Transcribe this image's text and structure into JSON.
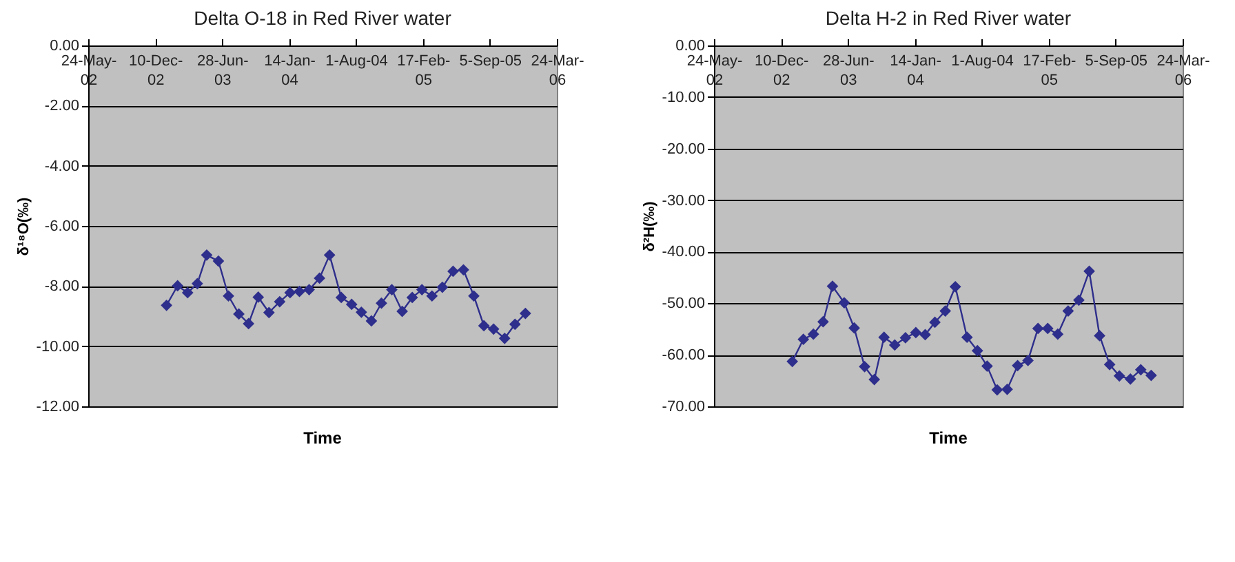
{
  "chart_data": [
    {
      "type": "line",
      "title": "Delta O-18 in Red River water",
      "xlabel": "Time",
      "ylabel": "δ¹⁸O(‰)",
      "marker": "diamond",
      "grid": "y",
      "x": [
        "2003-01-13",
        "2003-02-15",
        "2003-03-17",
        "2003-04-15",
        "2003-05-13",
        "2003-06-17",
        "2003-07-17",
        "2003-08-17",
        "2003-09-15",
        "2003-10-14",
        "2003-11-15",
        "2003-12-17",
        "2004-01-17",
        "2004-02-14",
        "2004-03-14",
        "2004-04-14",
        "2004-05-14",
        "2004-06-18",
        "2004-07-19",
        "2004-08-17",
        "2004-09-16",
        "2004-10-16",
        "2004-11-16",
        "2004-12-17",
        "2005-01-16",
        "2005-02-14",
        "2005-03-16",
        "2005-04-16",
        "2005-05-18",
        "2005-06-18",
        "2005-07-19",
        "2005-08-18",
        "2005-09-16",
        "2005-10-19",
        "2005-11-19",
        "2005-12-20"
      ],
      "series": [
        {
          "color": "#2e2e8c",
          "line_style": "solid",
          "values": [
            -8.64,
            -7.99,
            -8.22,
            -7.92,
            -6.97,
            -7.17,
            -8.33,
            -8.93,
            -9.25,
            -8.37,
            -8.88,
            -8.52,
            -8.22,
            -8.18,
            -8.12,
            -7.74,
            -6.97,
            -8.38,
            -8.61,
            -8.87,
            -9.16,
            -8.57,
            -8.12,
            -8.84,
            -8.38,
            -8.12,
            -8.33,
            -8.04,
            -7.51,
            -7.46,
            -8.33,
            -9.32,
            -9.43,
            -9.74,
            -9.27,
            -8.91
          ]
        }
      ],
      "xlim": [
        "2002-05-24",
        "2006-03-24"
      ],
      "xticks": [
        {
          "value": "2002-05-24",
          "label": "24-May-02"
        },
        {
          "value": "2002-12-10",
          "label": "10-Dec-02"
        },
        {
          "value": "2003-06-28",
          "label": "28-Jun-03"
        },
        {
          "value": "2004-01-14",
          "label": "14-Jan-04"
        },
        {
          "value": "2004-08-01",
          "label": "1-Aug-04"
        },
        {
          "value": "2005-02-17",
          "label": "17-Feb-05"
        },
        {
          "value": "2005-09-05",
          "label": "5-Sep-05"
        },
        {
          "value": "2006-03-24",
          "label": "24-Mar-06"
        }
      ],
      "ylim": [
        -12,
        0
      ],
      "yticks": [
        {
          "value": 0,
          "label": "0.00"
        },
        {
          "value": -2,
          "label": "-2.00"
        },
        {
          "value": -4,
          "label": "-4.00"
        },
        {
          "value": -6,
          "label": "-6.00"
        },
        {
          "value": -8,
          "label": "-8.00"
        },
        {
          "value": -10,
          "label": "-10.00"
        },
        {
          "value": -12,
          "label": "-12.00"
        }
      ]
    },
    {
      "type": "line",
      "title": "Delta H-2 in Red River water",
      "xlabel": "Time",
      "ylabel": "δ²H(‰)",
      "marker": "diamond",
      "grid": "y",
      "x": [
        "2003-01-13",
        "2003-02-15",
        "2003-03-17",
        "2003-04-15",
        "2003-05-13",
        "2003-06-17",
        "2003-07-17",
        "2003-08-17",
        "2003-09-15",
        "2003-10-14",
        "2003-11-15",
        "2003-12-17",
        "2004-01-17",
        "2004-02-14",
        "2004-03-14",
        "2004-04-14",
        "2004-05-14",
        "2004-06-18",
        "2004-07-19",
        "2004-08-17",
        "2004-09-16",
        "2004-10-16",
        "2004-11-16",
        "2004-12-17",
        "2005-01-16",
        "2005-02-14",
        "2005-03-16",
        "2005-04-16",
        "2005-05-18",
        "2005-06-18",
        "2005-07-19",
        "2005-08-18",
        "2005-09-16",
        "2005-10-19",
        "2005-11-19",
        "2005-12-20"
      ],
      "series": [
        {
          "color": "#2e2e8c",
          "line_style": "solid",
          "values": [
            -61.3,
            -57.0,
            -56.0,
            -53.6,
            -46.7,
            -49.9,
            -54.8,
            -62.3,
            -64.8,
            -56.6,
            -58.1,
            -56.7,
            -55.7,
            -56.1,
            -53.7,
            -51.5,
            -46.8,
            -56.6,
            -59.2,
            -62.2,
            -66.8,
            -66.7,
            -62.1,
            -61.1,
            -54.9,
            -54.9,
            -56.0,
            -51.5,
            -49.4,
            -43.8,
            -56.3,
            -61.9,
            -64.1,
            -64.7,
            -62.9,
            -64.0
          ]
        }
      ],
      "xlim": [
        "2002-05-24",
        "2006-03-24"
      ],
      "xticks": [
        {
          "value": "2002-05-24",
          "label": "24-May-02"
        },
        {
          "value": "2002-12-10",
          "label": "10-Dec-02"
        },
        {
          "value": "2003-06-28",
          "label": "28-Jun-03"
        },
        {
          "value": "2004-01-14",
          "label": "14-Jan-04"
        },
        {
          "value": "2004-08-01",
          "label": "1-Aug-04"
        },
        {
          "value": "2005-02-17",
          "label": "17-Feb-05"
        },
        {
          "value": "2005-09-05",
          "label": "5-Sep-05"
        },
        {
          "value": "2006-03-24",
          "label": "24-Mar-06"
        }
      ],
      "ylim": [
        -70,
        0
      ],
      "yticks": [
        {
          "value": 0,
          "label": "0.00"
        },
        {
          "value": -10,
          "label": "-10.00"
        },
        {
          "value": -20,
          "label": "-20.00"
        },
        {
          "value": -30,
          "label": "-30.00"
        },
        {
          "value": -40,
          "label": "-40.00"
        },
        {
          "value": -50,
          "label": "-50.00"
        },
        {
          "value": -60,
          "label": "-60.00"
        },
        {
          "value": -70,
          "label": "-70.00"
        }
      ]
    }
  ]
}
